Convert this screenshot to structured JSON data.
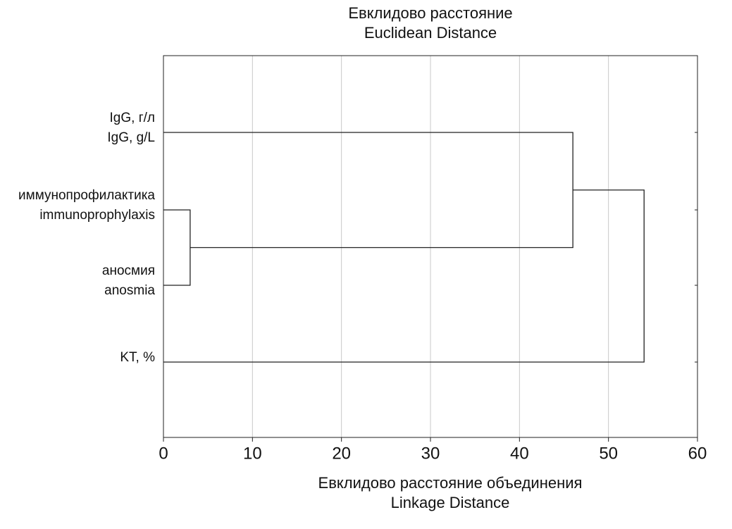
{
  "chart_data": {
    "type": "dendrogram",
    "title": [
      "Евклидово расстояние",
      "Euclidean Distance"
    ],
    "xlabel": [
      "Евклидово расстояние объединения",
      "Linkage Distance"
    ],
    "leaves": [
      {
        "label": [
          "IgG, г/л",
          "IgG, g/L"
        ]
      },
      {
        "label": [
          "иммунопрофилактика",
          "immunoprophylaxis"
        ]
      },
      {
        "label": [
          "аносмия",
          "anosmia"
        ]
      },
      {
        "label": [
          "KT, %"
        ]
      }
    ],
    "links": [
      {
        "nodes": [
          1,
          2
        ],
        "distance": 3
      },
      {
        "nodes": [
          0,
          4
        ],
        "distance": 46
      },
      {
        "nodes": [
          5,
          3
        ],
        "distance": 54
      }
    ],
    "xlim": [
      0,
      60
    ],
    "xticks": [
      0,
      10,
      20,
      30,
      40,
      50,
      60
    ],
    "grid": true,
    "color": "#222222",
    "grid_color": "#c8c8c8"
  }
}
